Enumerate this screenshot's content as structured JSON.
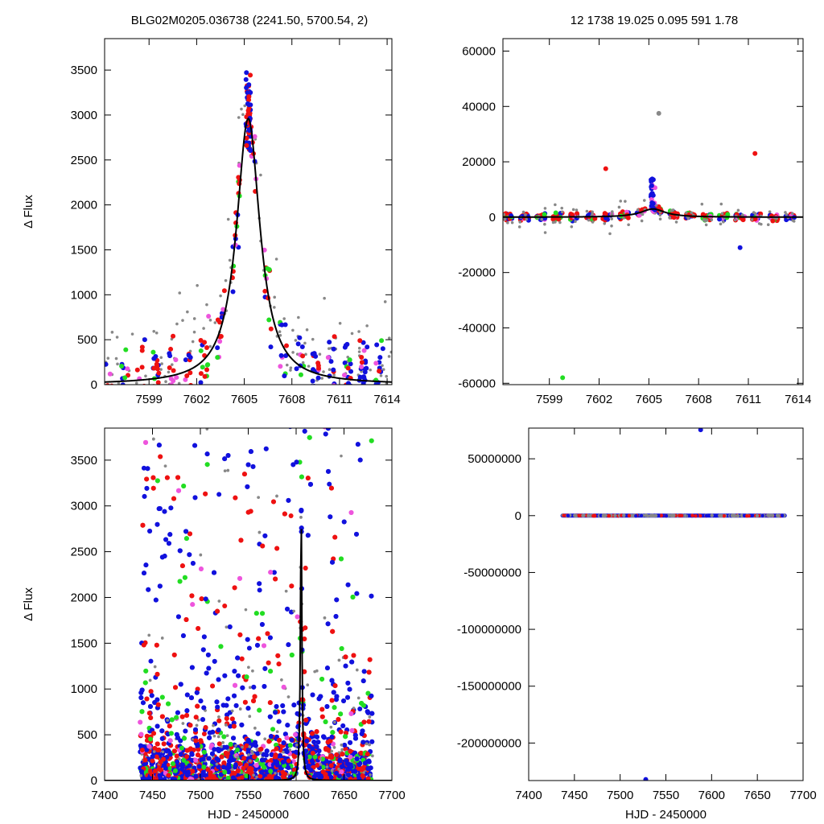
{
  "header": {
    "left": "BLG02M0205.036738 (2241.50, 5700.54,    2)",
    "right": "12    1738    19.025    0.095    591    1.78"
  },
  "colors": {
    "red": "#ee1111",
    "blue": "#1111dd",
    "green": "#22dd22",
    "magenta": "#ee55dd",
    "gray": "#888888",
    "model": "#000000"
  },
  "chart_data": [
    {
      "id": "top-left",
      "type": "scatter",
      "title": "",
      "xlabel": "",
      "ylabel": "Δ Flux",
      "xlim": [
        7596.2,
        7614.3
      ],
      "ylim": [
        0,
        3850
      ],
      "xticks": [
        7599,
        7602,
        7605,
        7608,
        7611,
        7614
      ],
      "yticks": [
        0,
        500,
        1000,
        1500,
        2000,
        2500,
        3000,
        3500
      ],
      "model": {
        "t0": 7605.25,
        "amplitude": 2960,
        "width": 0.9,
        "shape": "lorentzian"
      }
    },
    {
      "id": "top-right",
      "type": "scatter",
      "title": "",
      "xlabel": "",
      "ylabel": "",
      "xlim": [
        7596.2,
        7614.3
      ],
      "ylim": [
        -60500,
        64500
      ],
      "xticks": [
        7599,
        7602,
        7605,
        7608,
        7611,
        7614
      ],
      "yticks": [
        -60000,
        -40000,
        -20000,
        0,
        20000,
        40000,
        60000
      ],
      "model": {
        "t0": 7605.25,
        "amplitude": 2960,
        "width": 0.9,
        "shape": "lorentzian"
      },
      "notable_points": [
        {
          "x": 7599.8,
          "y": -58000
        },
        {
          "x": 7611.4,
          "y": 23000
        },
        {
          "x": 7602.4,
          "y": 17500
        },
        {
          "x": 7610.5,
          "y": -11000
        },
        {
          "x": 7605.6,
          "y": 37500
        }
      ]
    },
    {
      "id": "bottom-left",
      "type": "scatter",
      "title": "",
      "xlabel": "HJD - 2450000",
      "ylabel": "Δ Flux",
      "xlim": [
        7400,
        7700
      ],
      "ylim": [
        0,
        3850
      ],
      "xticks": [
        7400,
        7450,
        7500,
        7550,
        7600,
        7650,
        7700
      ],
      "yticks": [
        0,
        500,
        1000,
        1500,
        2000,
        2500,
        3000,
        3500
      ],
      "data_range_x": [
        7437,
        7680
      ],
      "model": {
        "t0": 7605.25,
        "amplitude": 2960,
        "width": 0.9,
        "shape": "lorentzian"
      }
    },
    {
      "id": "bottom-right",
      "type": "scatter",
      "title": "",
      "xlabel": "HJD - 2450000",
      "ylabel": "",
      "xlim": [
        7400,
        7700
      ],
      "ylim": [
        -233000000,
        77000000
      ],
      "xticks": [
        7400,
        7450,
        7500,
        7550,
        7600,
        7650,
        7700
      ],
      "yticks": [
        -200000000,
        -150000000,
        -100000000,
        -50000000,
        0,
        50000000
      ],
      "data_range_x": [
        7437,
        7680
      ],
      "outliers": [
        {
          "x": 7588,
          "y": 75500000
        },
        {
          "x": 7528,
          "y": -232000000
        }
      ]
    }
  ]
}
